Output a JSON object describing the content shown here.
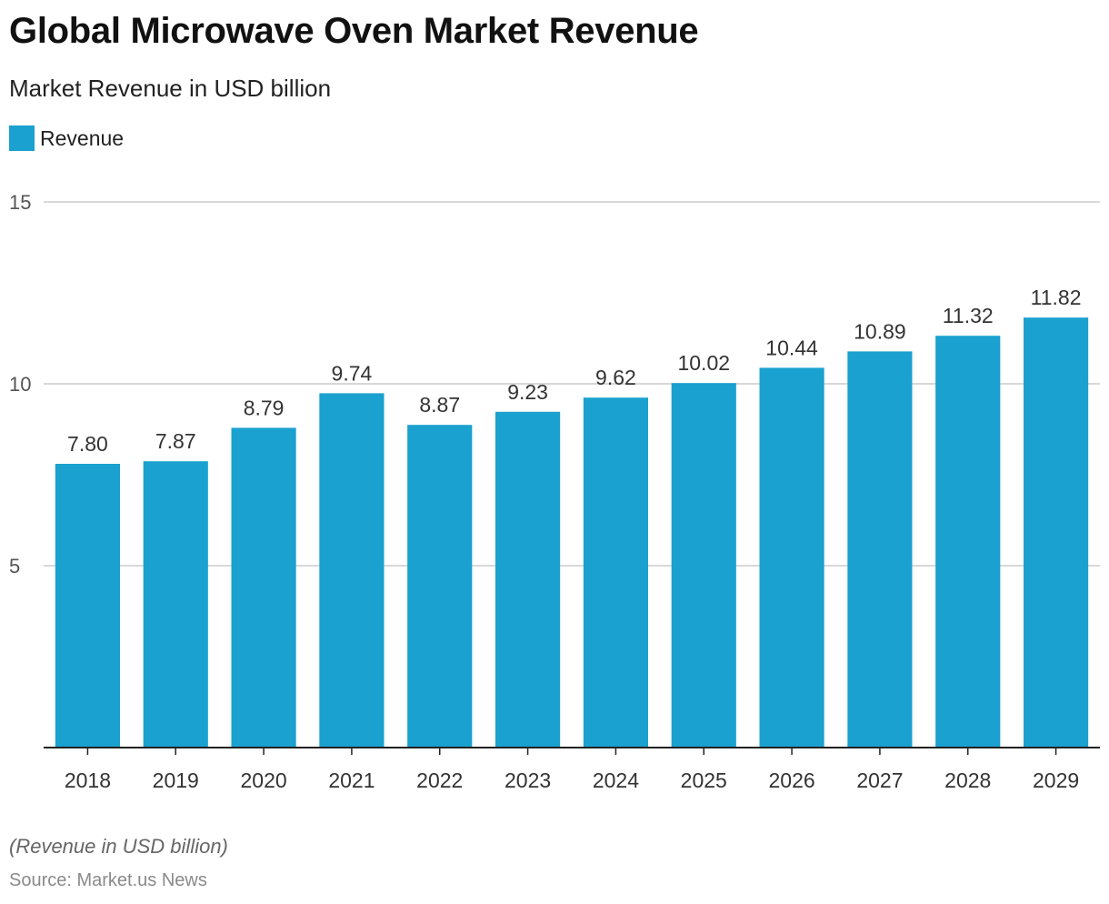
{
  "header": {
    "title": "Global Microwave Oven Market Revenue",
    "subtitle": "Market Revenue in USD billion"
  },
  "footer": {
    "note": "(Revenue in USD billion)",
    "source": "Source: Market.us News"
  },
  "colors": {
    "bar": "#1aa1cf",
    "grid": "#cccccc",
    "axis": "#222222",
    "tick_text": "#555555",
    "label_text": "#333333"
  },
  "chart_data": {
    "type": "bar",
    "categories": [
      "2018",
      "2019",
      "2020",
      "2021",
      "2022",
      "2023",
      "2024",
      "2025",
      "2026",
      "2027",
      "2028",
      "2029"
    ],
    "series": [
      {
        "name": "Revenue",
        "values": [
          7.8,
          7.87,
          8.79,
          9.74,
          8.87,
          9.23,
          9.62,
          10.02,
          10.44,
          10.89,
          11.32,
          11.82
        ],
        "labels": [
          "7.80",
          "7.87",
          "8.79",
          "9.74",
          "8.87",
          "9.23",
          "9.62",
          "10.02",
          "10.44",
          "10.89",
          "11.32",
          "11.82"
        ]
      }
    ],
    "ylim": [
      0,
      15
    ],
    "yticks": [
      5,
      10,
      15
    ],
    "grid": true,
    "legend_position": "top-left"
  }
}
